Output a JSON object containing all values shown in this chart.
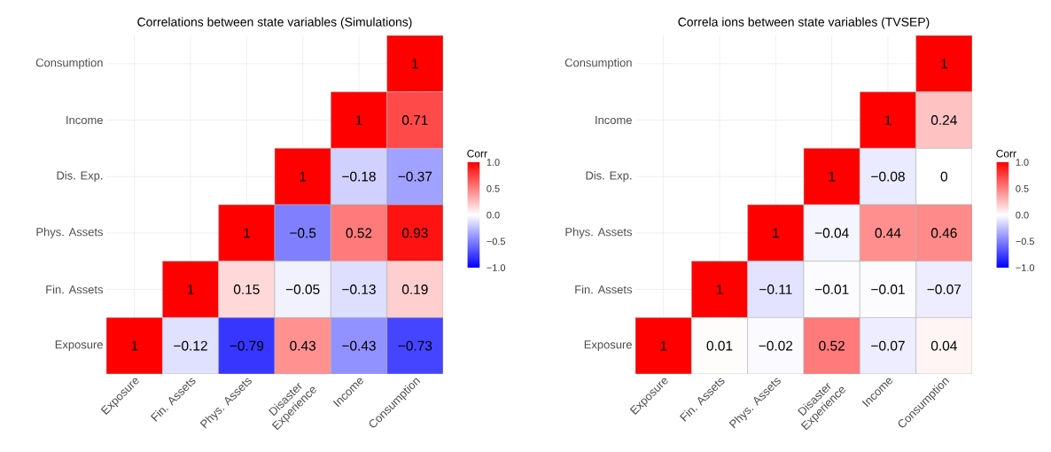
{
  "chart_data": [
    {
      "type": "heatmap",
      "title": "Correlations between state variables (Simulations)",
      "categories": [
        "Exposure",
        "Fin. Assets",
        "Phys. Assets",
        "Disaster Experience",
        "Income",
        "Consumption"
      ],
      "y_categories": [
        "Consumption",
        "Income",
        "Dis. Exp.",
        "Phys. Assets",
        "Fin. Assets",
        "Exposure"
      ],
      "cells": [
        [
          null,
          null,
          null,
          null,
          null,
          1
        ],
        [
          null,
          null,
          null,
          null,
          1,
          0.71
        ],
        [
          null,
          null,
          null,
          1,
          -0.18,
          -0.37
        ],
        [
          null,
          null,
          1,
          -0.5,
          0.52,
          0.93
        ],
        [
          null,
          1,
          0.15,
          -0.05,
          -0.13,
          0.19
        ],
        [
          1,
          -0.12,
          -0.79,
          0.43,
          -0.43,
          -0.73
        ]
      ],
      "clim": [
        -1,
        1
      ],
      "cticks": [
        {
          "value": -1,
          "label": "−1.0"
        },
        {
          "value": -0.5,
          "label": "−0.5"
        },
        {
          "value": 0,
          "label": "0.0"
        },
        {
          "value": 0.5,
          "label": "0.5"
        },
        {
          "value": 1,
          "label": "1.0"
        }
      ],
      "clabel": "Corr",
      "data_labels": true,
      "grid": true
    },
    {
      "type": "heatmap",
      "title": "Correla ions between state variables (TVSEP)",
      "categories": [
        "Exposure",
        "Fin. Assets",
        "Phys. Assets",
        "Disaster Experience",
        "Income",
        "Consumption"
      ],
      "y_categories": [
        "Consumption",
        "Income",
        "Dis. Exp.",
        "Phys. Assets",
        "Fin. Assets",
        "Exposure"
      ],
      "cells": [
        [
          null,
          null,
          null,
          null,
          null,
          1
        ],
        [
          null,
          null,
          null,
          null,
          1,
          0.24
        ],
        [
          null,
          null,
          null,
          1,
          -0.08,
          0
        ],
        [
          null,
          null,
          1,
          -0.04,
          0.44,
          0.46
        ],
        [
          null,
          1,
          -0.11,
          -0.01,
          -0.01,
          -0.07
        ],
        [
          1,
          0.01,
          -0.02,
          0.52,
          -0.07,
          0.04
        ]
      ],
      "clim": [
        -1,
        1
      ],
      "cticks": [
        {
          "value": -1,
          "label": "−1.0"
        },
        {
          "value": -0.5,
          "label": "−0.5"
        },
        {
          "value": 0,
          "label": "0.0"
        },
        {
          "value": 0.5,
          "label": "0.5"
        },
        {
          "value": 1,
          "label": "1.0"
        }
      ],
      "clabel": "Corr",
      "data_labels": true,
      "grid": true
    }
  ]
}
